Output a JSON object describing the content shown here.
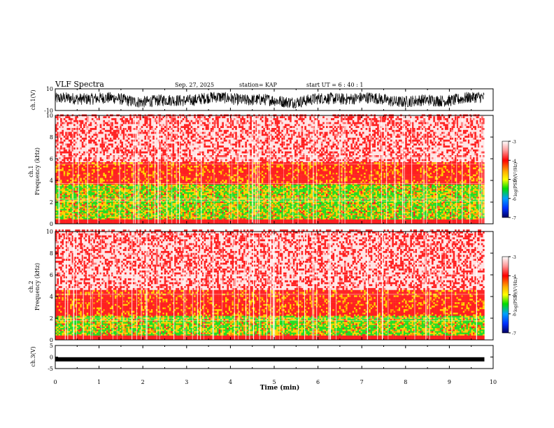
{
  "header": {
    "title": "VLF Spectra",
    "date": "Sep. 27, 2025",
    "station": "station= KAP",
    "start": "start  UT =   6 : 40 : 1"
  },
  "chart_data": [
    {
      "type": "line",
      "name": "ch1-waveform",
      "ylabel": "ch.1(V)",
      "ylim": [
        -10,
        10
      ],
      "yticks": [
        "10",
        "-10"
      ],
      "description_series": "dense oscillating voltage trace spanning roughly -7 to +6 V",
      "xlim": [
        0,
        9.8
      ]
    },
    {
      "type": "heatmap",
      "name": "ch1-spectrogram",
      "ylabel": "ch.1\nFrequency (kHz)",
      "ylabel_top": "ch.1",
      "ylabel_main": "Frequency  (kHz)",
      "ylim": [
        0,
        10
      ],
      "yticks": [
        "0",
        "2",
        "4",
        "6",
        "8",
        "10"
      ],
      "xlim": [
        0,
        9.8
      ],
      "bands": [
        {
          "from": 0,
          "to": 1.5,
          "level": "green-yellow"
        },
        {
          "from": 1.5,
          "to": 3.5,
          "level": "green-yellow"
        },
        {
          "from": 3.5,
          "to": 5.5,
          "level": "red-yellow"
        },
        {
          "from": 5.5,
          "to": 10,
          "level": "red-sparse"
        }
      ],
      "colorbar": {
        "label": "log(PSD)(V²/Hz)",
        "ticks": [
          "-3",
          "-4",
          "-5",
          "-6",
          "-7"
        ],
        "range": [
          -7,
          -3
        ]
      }
    },
    {
      "type": "heatmap",
      "name": "ch2-spectrogram",
      "ylabel_top": "ch.2",
      "ylabel_main": "Frequency  (kHz)",
      "ylim": [
        0,
        10
      ],
      "yticks": [
        "0",
        "2",
        "4",
        "6",
        "8",
        "10"
      ],
      "xlim": [
        0,
        9.8
      ],
      "bands": [
        {
          "from": 0,
          "to": 2,
          "level": "green-yellow"
        },
        {
          "from": 2,
          "to": 4.5,
          "level": "red-yellow"
        },
        {
          "from": 4.5,
          "to": 10,
          "level": "red-sparse"
        }
      ],
      "colorbar": {
        "label": "log(PSD)(V²/Hz)",
        "ticks": [
          "-3",
          "-4",
          "-5",
          "-6",
          "-7"
        ],
        "range": [
          -7,
          -3
        ]
      }
    },
    {
      "type": "line",
      "name": "ch3-waveform",
      "ylabel": "ch.3(V)",
      "ylim": [
        -5,
        5
      ],
      "yticks": [
        "5",
        "0",
        "-5"
      ],
      "level": -1,
      "xlim": [
        0,
        9.8
      ]
    }
  ],
  "xaxis": {
    "label": "Time  (min)",
    "ticks": [
      "0",
      "1",
      "2",
      "3",
      "4",
      "5",
      "6",
      "7",
      "8",
      "9",
      "10"
    ],
    "range": [
      0,
      10
    ]
  },
  "colors": {
    "background": "#ffffff",
    "frame": "#000000",
    "red": "#ff2020",
    "yellow": "#ffd400",
    "green": "#22dd22"
  }
}
